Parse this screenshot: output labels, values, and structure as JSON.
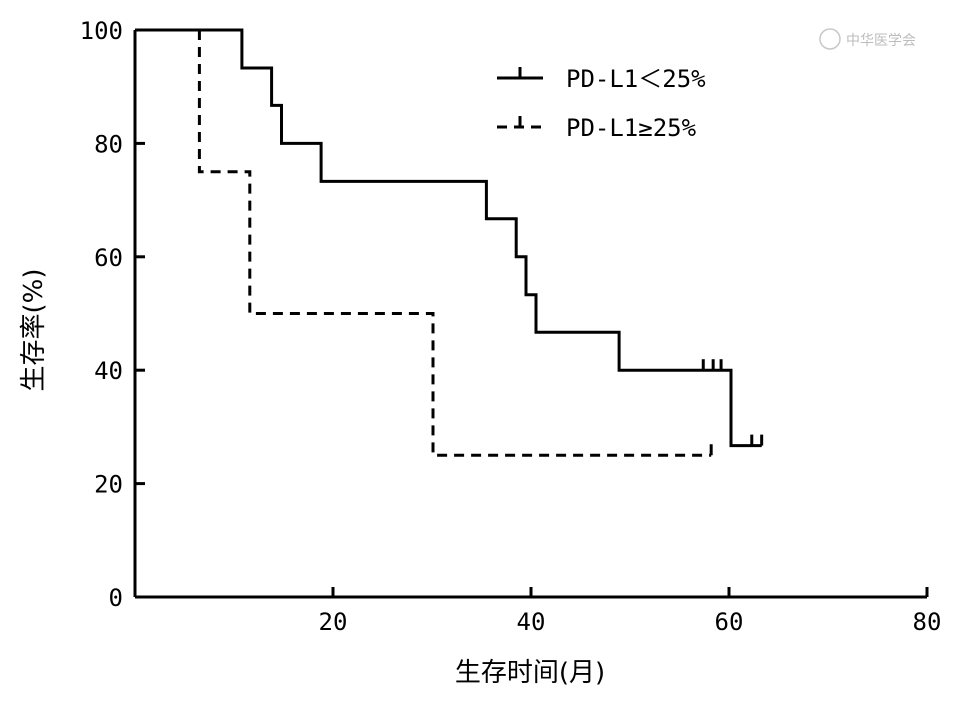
{
  "watermark": "中华医学会",
  "chart_data": {
    "type": "line",
    "step": true,
    "xlabel": "生存时间(月)",
    "ylabel": "生存率(%)",
    "xlim": [
      0,
      80
    ],
    "ylim": [
      0,
      100
    ],
    "x_ticks": [
      20,
      40,
      60,
      80
    ],
    "y_ticks": [
      0,
      20,
      40,
      60,
      80,
      100
    ],
    "legend_position": "top-right",
    "series": [
      {
        "name": "PD-L1＜25%",
        "style": "solid",
        "color": "#000000",
        "points": [
          [
            0,
            100
          ],
          [
            10.8,
            100
          ],
          [
            10.8,
            93.3
          ],
          [
            13.8,
            93.3
          ],
          [
            13.8,
            86.7
          ],
          [
            14.8,
            86.7
          ],
          [
            14.8,
            80
          ],
          [
            18.8,
            80
          ],
          [
            18.8,
            73.3
          ],
          [
            35.5,
            73.3
          ],
          [
            35.5,
            66.7
          ],
          [
            38.5,
            66.7
          ],
          [
            38.5,
            60
          ],
          [
            39.5,
            60
          ],
          [
            39.5,
            53.3
          ],
          [
            40.5,
            53.3
          ],
          [
            40.5,
            46.7
          ],
          [
            48.9,
            46.7
          ],
          [
            48.9,
            40
          ],
          [
            60.2,
            40
          ],
          [
            60.2,
            26.7
          ],
          [
            63.3,
            26.7
          ]
        ],
        "censored": [
          [
            57.4,
            40
          ],
          [
            58.4,
            40
          ],
          [
            59.2,
            40
          ],
          [
            62.3,
            26.7
          ],
          [
            63.3,
            26.7
          ]
        ]
      },
      {
        "name": "PD-L1≥25%",
        "style": "dashed",
        "color": "#000000",
        "points": [
          [
            6.5,
            100
          ],
          [
            6.5,
            75
          ],
          [
            11.6,
            75
          ],
          [
            11.6,
            50
          ],
          [
            30.1,
            50
          ],
          [
            30.1,
            25
          ],
          [
            58.2,
            25
          ]
        ],
        "censored": [
          [
            58.2,
            25
          ]
        ]
      }
    ]
  }
}
